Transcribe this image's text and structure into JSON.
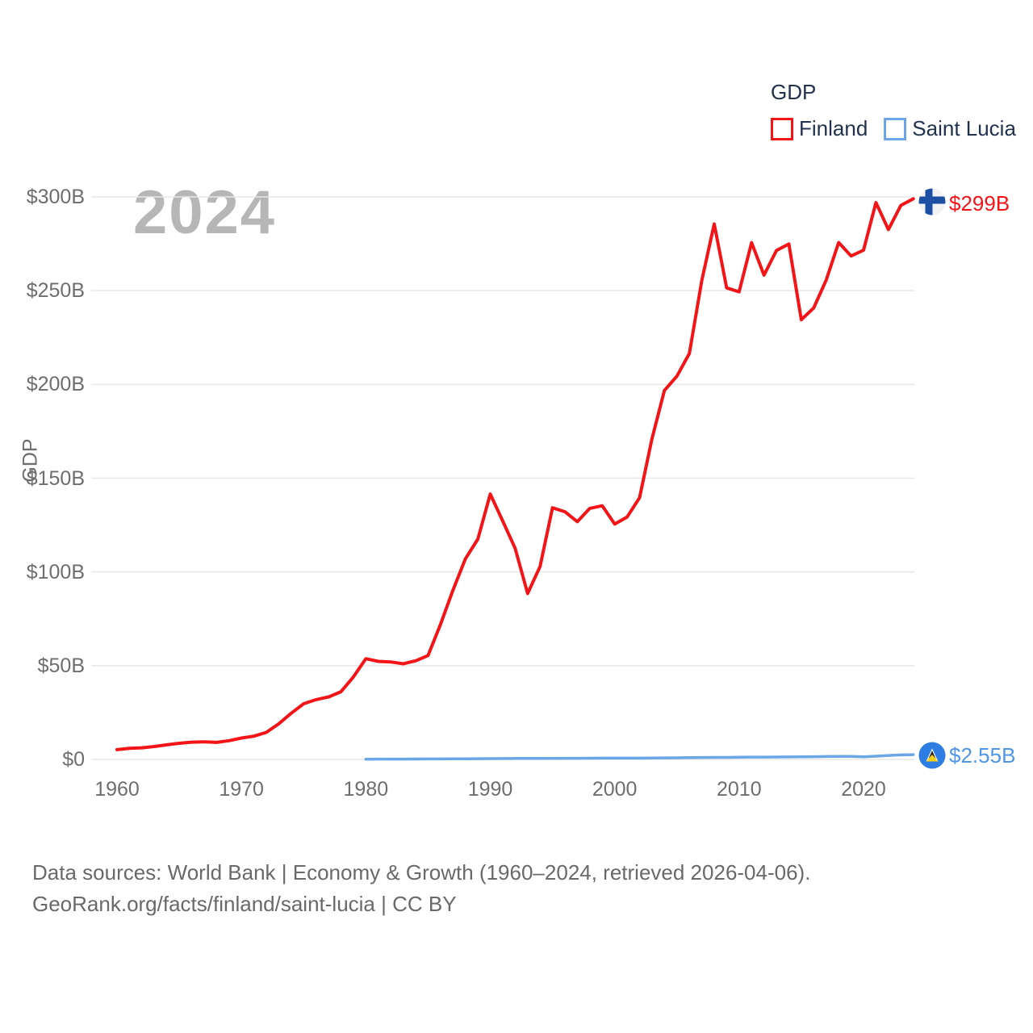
{
  "legend": {
    "title": "GDP",
    "items": [
      {
        "label": "Finland",
        "swatch": "#f31418"
      },
      {
        "label": "Saint Lucia",
        "swatch": "#6ba7e6"
      }
    ]
  },
  "watermark": {
    "text": "2024"
  },
  "axes": {
    "y_title": "GDP",
    "y_ticks": [
      {
        "value": 0,
        "label": "$0"
      },
      {
        "value": 50,
        "label": "$50B"
      },
      {
        "value": 100,
        "label": "$100B"
      },
      {
        "value": 150,
        "label": "$150B"
      },
      {
        "value": 200,
        "label": "$200B"
      },
      {
        "value": 250,
        "label": "$250B"
      },
      {
        "value": 300,
        "label": "$300B"
      }
    ],
    "x_tick_years": [
      1960,
      1970,
      1980,
      1990,
      2000,
      2010,
      2020
    ]
  },
  "chart_data": {
    "type": "line",
    "title": "GDP",
    "ylabel": "GDP",
    "ylim": [
      0,
      300
    ],
    "xlim": [
      1960,
      2024
    ],
    "grid": "horizontal",
    "legend_position": "top-right",
    "x": [
      1960,
      1961,
      1962,
      1963,
      1964,
      1965,
      1966,
      1967,
      1968,
      1969,
      1970,
      1971,
      1972,
      1973,
      1974,
      1975,
      1976,
      1977,
      1978,
      1979,
      1980,
      1981,
      1982,
      1983,
      1984,
      1985,
      1986,
      1987,
      1988,
      1989,
      1990,
      1991,
      1992,
      1993,
      1994,
      1995,
      1996,
      1997,
      1998,
      1999,
      2000,
      2001,
      2002,
      2003,
      2004,
      2005,
      2006,
      2007,
      2008,
      2009,
      2010,
      2011,
      2012,
      2013,
      2014,
      2015,
      2016,
      2017,
      2018,
      2019,
      2020,
      2021,
      2022,
      2023,
      2024
    ],
    "series": [
      {
        "name": "Finland",
        "color": "#f31418",
        "end_label": "$299B",
        "end_value_billions": 299,
        "values": [
          5.2,
          5.9,
          6.2,
          6.9,
          7.8,
          8.6,
          9.2,
          9.4,
          9.1,
          10.0,
          11.4,
          12.4,
          14.4,
          19.0,
          24.6,
          29.7,
          31.9,
          33.3,
          36.1,
          44.0,
          53.7,
          52.3,
          52.0,
          51.0,
          52.6,
          55.4,
          72.0,
          90.3,
          107.0,
          117.5,
          141.5,
          127.2,
          112.6,
          88.5,
          102.9,
          134.2,
          132.1,
          126.8,
          133.9,
          135.3,
          125.5,
          129.3,
          139.6,
          171.1,
          196.8,
          204.4,
          216.5,
          255.4,
          285.6,
          251.5,
          249.4,
          275.6,
          258.3,
          271.4,
          274.9,
          234.5,
          240.8,
          255.7,
          275.7,
          268.5,
          271.6,
          297.0,
          282.6,
          295.5,
          299.0
        ]
      },
      {
        "name": "Saint Lucia",
        "color": "#6ba7e6",
        "end_label": "$2.55B",
        "end_value_billions": 2.55,
        "values": [
          null,
          null,
          null,
          null,
          null,
          null,
          null,
          null,
          null,
          null,
          null,
          null,
          null,
          null,
          null,
          null,
          null,
          null,
          null,
          null,
          0.15,
          0.17,
          0.18,
          0.19,
          0.21,
          0.24,
          0.27,
          0.31,
          0.36,
          0.39,
          0.45,
          0.48,
          0.52,
          0.53,
          0.55,
          0.58,
          0.6,
          0.62,
          0.66,
          0.69,
          0.71,
          0.7,
          0.71,
          0.76,
          0.83,
          0.88,
          0.97,
          1.04,
          1.08,
          1.06,
          1.2,
          1.24,
          1.26,
          1.3,
          1.35,
          1.43,
          1.46,
          1.53,
          1.61,
          1.65,
          1.38,
          1.71,
          2.1,
          2.43,
          2.55
        ]
      }
    ]
  },
  "footer": {
    "line1": "Data sources: World Bank | Economy & Growth (1960–2024, retrieved 2026-04-06).",
    "line2": "GeoRank.org/facts/finland/saint-lucia | CC BY"
  }
}
